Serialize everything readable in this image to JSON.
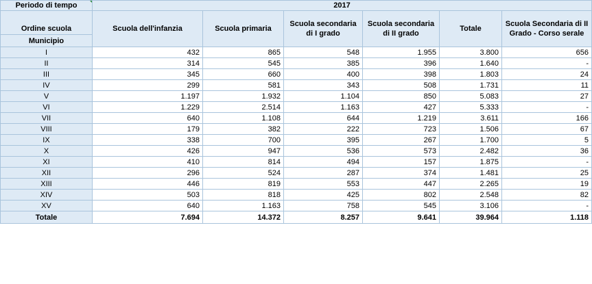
{
  "header": {
    "period_label": "Periodo di tempo",
    "year": "2017",
    "ordine_label": "Ordine scuola",
    "municipio_label": "Municipio",
    "columns": [
      "Scuola dell'infanzia",
      "Scuola primaria",
      "Scuola secondaria di I grado",
      "Scuola secondaria di II grado",
      "Totale",
      "Scuola Secondaria di II Grado - Corso serale"
    ]
  },
  "rows": [
    {
      "label": "I",
      "values": [
        "432",
        "865",
        "548",
        "1.955",
        "3.800",
        "656"
      ]
    },
    {
      "label": "II",
      "values": [
        "314",
        "545",
        "385",
        "396",
        "1.640",
        "-"
      ]
    },
    {
      "label": "III",
      "values": [
        "345",
        "660",
        "400",
        "398",
        "1.803",
        "24"
      ]
    },
    {
      "label": "IV",
      "values": [
        "299",
        "581",
        "343",
        "508",
        "1.731",
        "11"
      ]
    },
    {
      "label": "V",
      "values": [
        "1.197",
        "1.932",
        "1.104",
        "850",
        "5.083",
        "27"
      ]
    },
    {
      "label": "VI",
      "values": [
        "1.229",
        "2.514",
        "1.163",
        "427",
        "5.333",
        "-"
      ]
    },
    {
      "label": "VII",
      "values": [
        "640",
        "1.108",
        "644",
        "1.219",
        "3.611",
        "166"
      ]
    },
    {
      "label": "VIII",
      "values": [
        "179",
        "382",
        "222",
        "723",
        "1.506",
        "67"
      ]
    },
    {
      "label": "IX",
      "values": [
        "338",
        "700",
        "395",
        "267",
        "1.700",
        "5"
      ]
    },
    {
      "label": "X",
      "values": [
        "426",
        "947",
        "536",
        "573",
        "2.482",
        "36"
      ]
    },
    {
      "label": "XI",
      "values": [
        "410",
        "814",
        "494",
        "157",
        "1.875",
        "-"
      ]
    },
    {
      "label": "XII",
      "values": [
        "296",
        "524",
        "287",
        "374",
        "1.481",
        "25"
      ]
    },
    {
      "label": "XIII",
      "values": [
        "446",
        "819",
        "553",
        "447",
        "2.265",
        "19"
      ]
    },
    {
      "label": "XIV",
      "values": [
        "503",
        "818",
        "425",
        "802",
        "2.548",
        "82"
      ]
    },
    {
      "label": "XV",
      "values": [
        "640",
        "1.163",
        "758",
        "545",
        "3.106",
        "-"
      ]
    }
  ],
  "total": {
    "label": "Totale",
    "values": [
      "7.694",
      "14.372",
      "8.257",
      "9.641",
      "39.964",
      "1.118"
    ]
  }
}
